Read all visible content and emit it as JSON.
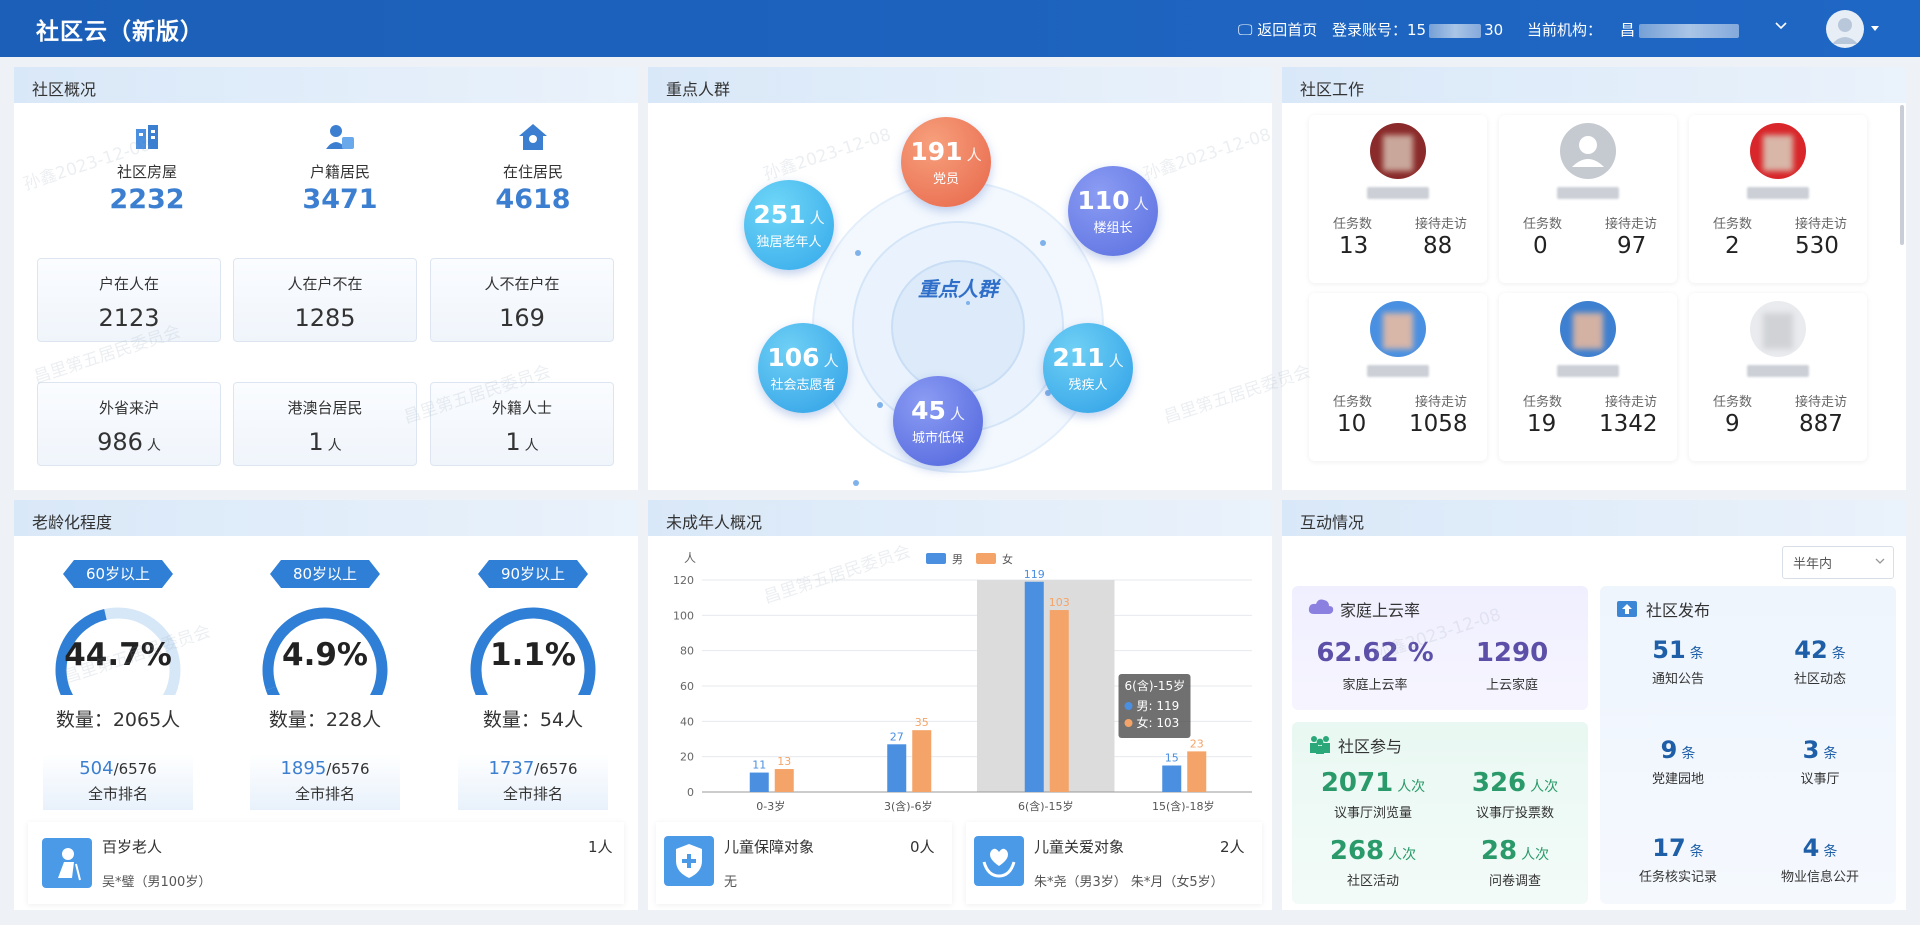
{
  "header": {
    "title": "社区云（新版）",
    "home_label": "返回首页",
    "account_label": "登录账号：",
    "account_prefix": "15",
    "account_suffix": "30",
    "org_label": "当前机构：",
    "org_prefix": "昌"
  },
  "community_overview": {
    "title": "社区概况",
    "stats": [
      {
        "label": "社区房屋",
        "value": "2232"
      },
      {
        "label": "户籍居民",
        "value": "3471"
      },
      {
        "label": "在住居民",
        "value": "4618"
      }
    ],
    "cards": [
      {
        "label": "户在人在",
        "value": "2123",
        "unit": ""
      },
      {
        "label": "人在户不在",
        "value": "1285",
        "unit": ""
      },
      {
        "label": "人不在户在",
        "value": "169",
        "unit": ""
      },
      {
        "label": "外省来沪",
        "value": "986",
        "unit": "人"
      },
      {
        "label": "港澳台居民",
        "value": "1",
        "unit": "人"
      },
      {
        "label": "外籍人士",
        "value": "1",
        "unit": "人"
      }
    ]
  },
  "key_groups": {
    "title": "重点人群",
    "center_label": "重点人群",
    "groups": [
      {
        "value": "191",
        "unit": "人",
        "label": "党员"
      },
      {
        "value": "110",
        "unit": "人",
        "label": "楼组长"
      },
      {
        "value": "211",
        "unit": "人",
        "label": "残疾人"
      },
      {
        "value": "45",
        "unit": "人",
        "label": "城市低保"
      },
      {
        "value": "106",
        "unit": "人",
        "label": "社会志愿者"
      },
      {
        "value": "251",
        "unit": "人",
        "label": "独居老年人"
      }
    ]
  },
  "community_work": {
    "title": "社区工作",
    "task_label": "任务数",
    "visit_label": "接待走访",
    "people": [
      {
        "tasks": "13",
        "visits": "88"
      },
      {
        "tasks": "0",
        "visits": "97"
      },
      {
        "tasks": "2",
        "visits": "530"
      },
      {
        "tasks": "10",
        "visits": "1058"
      },
      {
        "tasks": "19",
        "visits": "1342"
      },
      {
        "tasks": "9",
        "visits": "887"
      }
    ]
  },
  "aging": {
    "title": "老龄化程度",
    "items": [
      {
        "tag": "60岁以上",
        "pct": "44.7%",
        "pct_value": 44.7,
        "count": "数量：2065人",
        "rank": "504",
        "total": "/6576",
        "rank_label": "全市排名"
      },
      {
        "tag": "80岁以上",
        "pct": "4.9%",
        "pct_value": 4.9,
        "count": "数量：228人",
        "rank": "1895",
        "total": "/6576",
        "rank_label": "全市排名"
      },
      {
        "tag": "90岁以上",
        "pct": "1.1%",
        "pct_value": 1.1,
        "count": "数量：54人",
        "rank": "1737",
        "total": "/6576",
        "rank_label": "全市排名"
      }
    ],
    "centenarian": {
      "label": "百岁老人",
      "count": "1人",
      "detail": "吴*璧（男100岁）"
    }
  },
  "minors": {
    "title": "未成年人概况",
    "protect": {
      "label": "儿童保障对象",
      "count": "0人",
      "detail": "无"
    },
    "care": {
      "label": "儿童关爱对象",
      "count": "2人",
      "detail": "朱*尧（男3岁） 朱*月（女5岁）"
    }
  },
  "chart_data": {
    "type": "bar",
    "ylabel": "人",
    "ylim": [
      0,
      120
    ],
    "yticks": [
      0,
      20,
      40,
      60,
      80,
      100,
      120
    ],
    "categories": [
      "0-3岁",
      "3(含)-6岁",
      "6(含)-15岁",
      "15(含)-18岁"
    ],
    "series": [
      {
        "name": "男",
        "values": [
          11,
          27,
          119,
          15
        ],
        "color": "#4a8fe0"
      },
      {
        "name": "女",
        "values": [
          13,
          35,
          103,
          23
        ],
        "color": "#f4a468"
      }
    ],
    "tooltip": {
      "title": "6(含)-15岁",
      "lines": [
        "男: 119",
        "女: 103"
      ]
    },
    "highlight_index": 2,
    "legend": "top-center",
    "grid": true
  },
  "interaction": {
    "title": "互动情况",
    "range_select": "半年内",
    "family": {
      "title": "家庭上云率",
      "items": [
        {
          "value": "62.62 %",
          "label": "家庭上云率"
        },
        {
          "value": "1290",
          "label": "上云家庭"
        }
      ]
    },
    "participation": {
      "title": "社区参与",
      "unit": "人次",
      "items": [
        {
          "value": "2071",
          "label": "议事厅浏览量"
        },
        {
          "value": "326",
          "label": "议事厅投票数"
        },
        {
          "value": "268",
          "label": "社区活动"
        },
        {
          "value": "28",
          "label": "问卷调查"
        }
      ]
    },
    "publish": {
      "title": "社区发布",
      "unit": "条",
      "items": [
        {
          "value": "51",
          "label": "通知公告"
        },
        {
          "value": "42",
          "label": "社区动态"
        },
        {
          "value": "9",
          "label": "党建园地"
        },
        {
          "value": "3",
          "label": "议事厅"
        },
        {
          "value": "17",
          "label": "任务核实记录"
        },
        {
          "value": "4",
          "label": "物业信息公开"
        }
      ]
    }
  },
  "watermark": {
    "name": "孙鑫2023-12-08",
    "org": "昌里第五居民委员会"
  }
}
